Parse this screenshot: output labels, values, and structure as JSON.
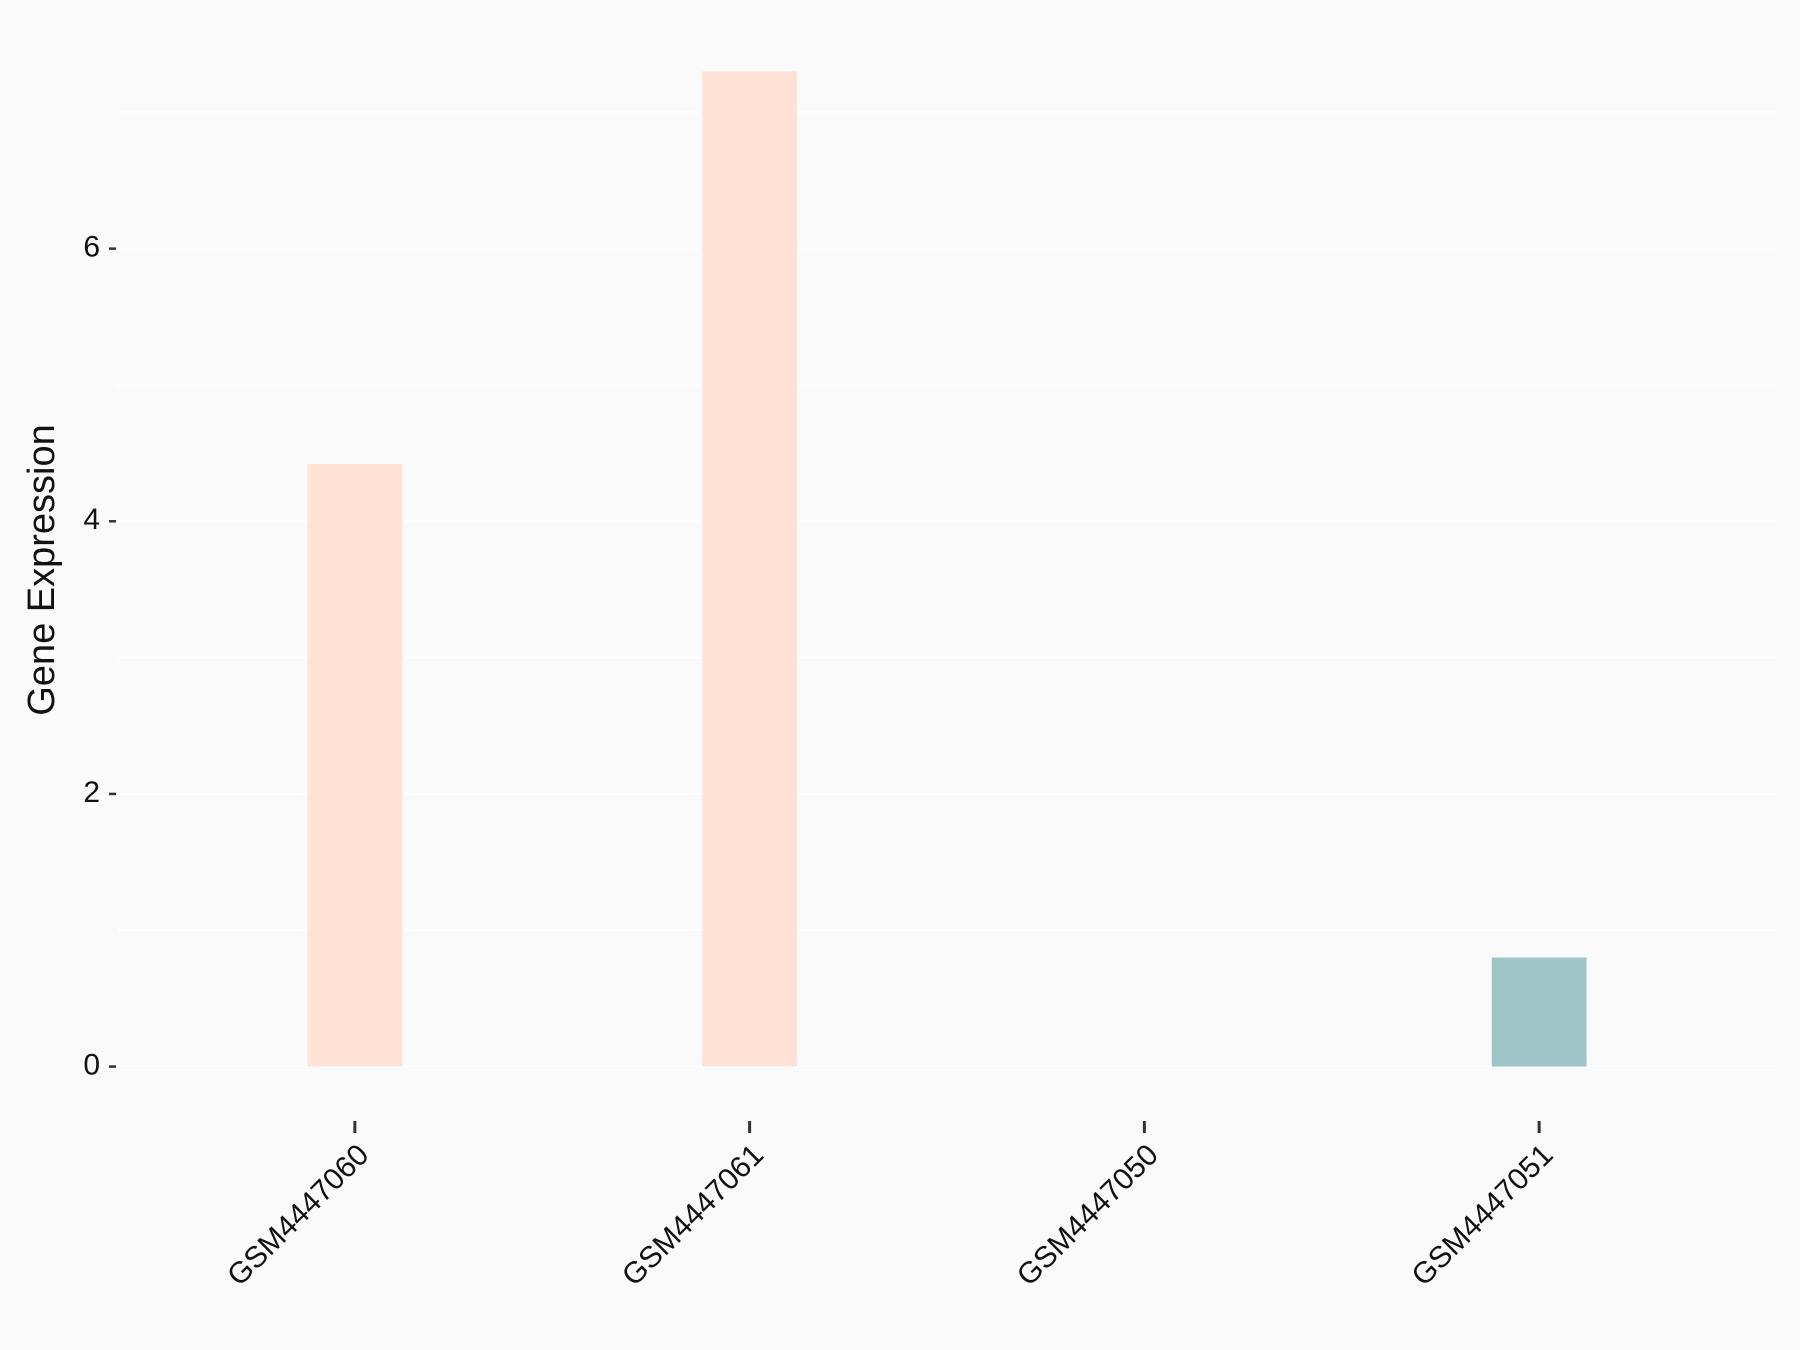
{
  "chart_data": {
    "type": "bar",
    "y_label": "Gene Expression",
    "categories": [
      "GSM4447060",
      "GSM4447061",
      "GSM4447050",
      "GSM4447051"
    ],
    "values": [
      4.42,
      7.3,
      0,
      0.8
    ],
    "colors": [
      "#ffe1d6",
      "#ffe1d6",
      "#9fc5c8",
      "#9fc5c8"
    ],
    "ylim": [
      -0.37,
      7.67
    ],
    "yticks": [
      0,
      2,
      4,
      6
    ],
    "minor_yticks": [
      1,
      3,
      5,
      7
    ],
    "grid": true
  }
}
